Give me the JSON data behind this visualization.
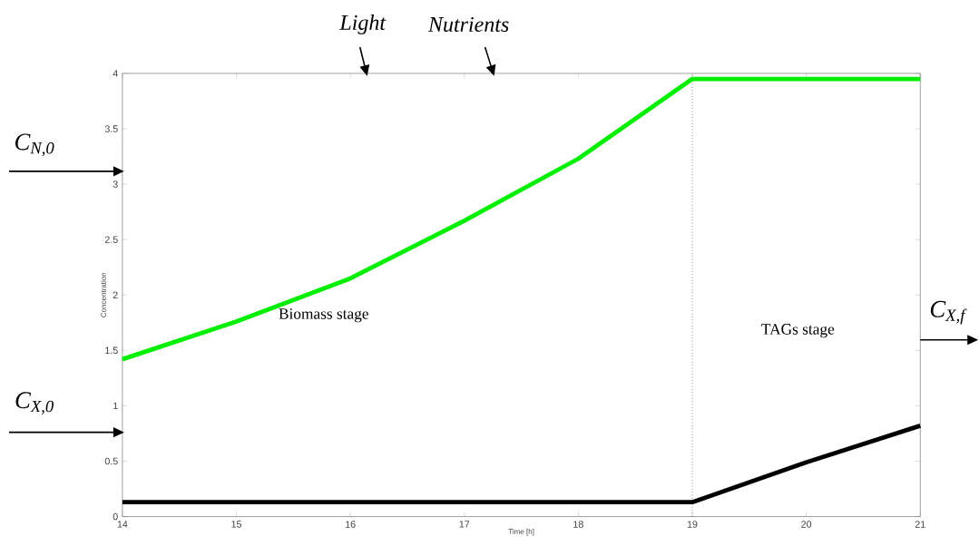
{
  "chart_data": {
    "type": "line",
    "xlabel": "Time [h]",
    "ylabel": "Concentration",
    "x": [
      14,
      15,
      16,
      17,
      18,
      19,
      20,
      21
    ],
    "series": [
      {
        "color": "#00ee00",
        "values": [
          1.42,
          1.76,
          2.15,
          2.67,
          3.23,
          3.95,
          3.95,
          3.95
        ]
      },
      {
        "color": "#000000",
        "values": [
          0.13,
          0.13,
          0.13,
          0.13,
          0.13,
          0.13,
          0.49,
          0.82
        ]
      }
    ],
    "xlim": [
      14,
      21
    ],
    "ylim": [
      0,
      4
    ],
    "xticks": [
      14,
      15,
      16,
      17,
      18,
      19,
      20,
      21
    ],
    "yticks": [
      0,
      0.5,
      1,
      1.5,
      2,
      2.5,
      3,
      3.5,
      4
    ],
    "line_style": "solid",
    "ref_lines": [
      {
        "axis": "x",
        "value": 19,
        "line_style": "dotted",
        "color": "#000000"
      }
    ],
    "annotations": [
      "Light",
      "Nutrients",
      "C$_{N,0}$",
      "C$_{X,0}$",
      "C$_{X,f}$",
      "Biomass stage",
      "TAGs stage"
    ]
  }
}
